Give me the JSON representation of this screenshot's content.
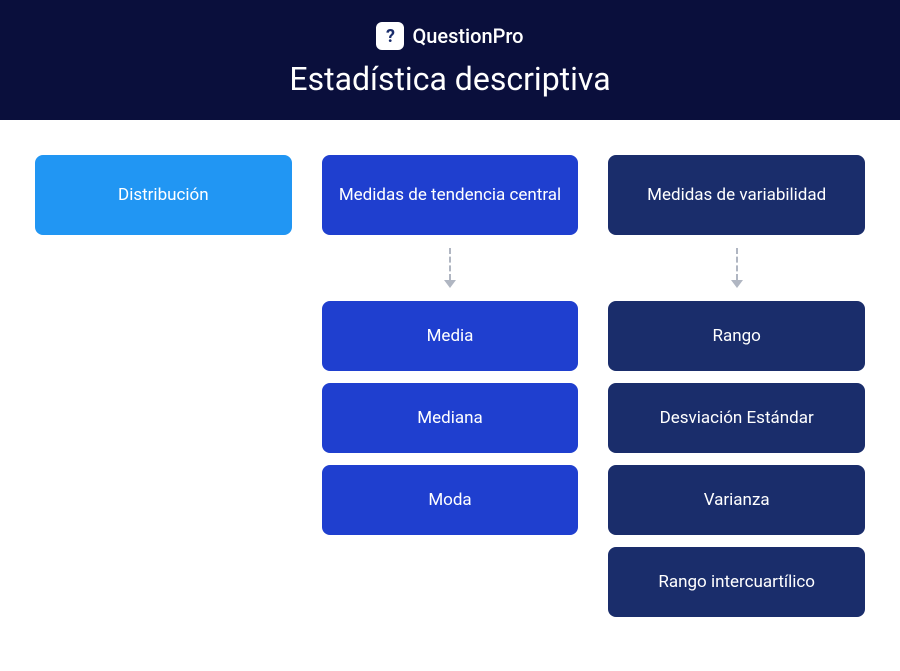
{
  "brand": {
    "name": "QuestionPro",
    "icon_letter": "?"
  },
  "title": "Estadística descriptiva",
  "colors": {
    "header_bg": "#0a0f3c",
    "col1_header": "#2196f3",
    "col2_header": "#1f3fcf",
    "col2_item": "#1f3fcf",
    "col3_header": "#1a2d6b",
    "col3_item": "#1a2d6b",
    "box_text": "#ffffff",
    "arrow": "#b0b6c2"
  },
  "columns": [
    {
      "header": "Distribución",
      "items": []
    },
    {
      "header": "Medidas de tendencia central",
      "items": [
        "Media",
        "Mediana",
        "Moda"
      ]
    },
    {
      "header": "Medidas de variabilidad",
      "items": [
        "Rango",
        "Desviación Estándar",
        "Varianza",
        "Rango intercuartílico"
      ]
    }
  ]
}
